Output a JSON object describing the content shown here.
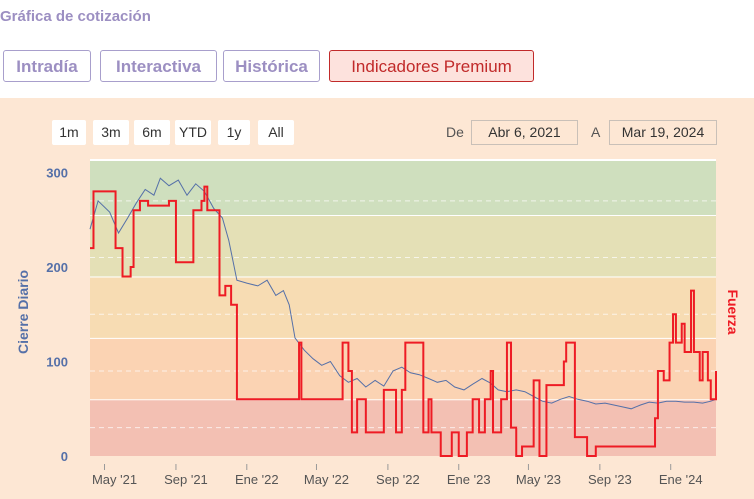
{
  "title": "Gráfica de cotización",
  "tabs": [
    {
      "label": "Intradía"
    },
    {
      "label": "Interactiva"
    },
    {
      "label": "Histórica"
    },
    {
      "label": "Indicadores Premium"
    }
  ],
  "range_buttons": [
    "1m",
    "3m",
    "6m",
    "YTD",
    "1y",
    "All"
  ],
  "date_from_label": "De",
  "date_from": "Abr 6, 2021",
  "date_to_label": "A",
  "date_to": "Mar 19, 2024",
  "chart_data": {
    "type": "line",
    "ylabel": "Cierre Diario",
    "y2label": "Fuerza",
    "ylim": [
      0,
      310
    ],
    "y_ticks": [
      0,
      100,
      200,
      300
    ],
    "x_ticks": [
      "May '21",
      "Sep '21",
      "Ene '22",
      "May '22",
      "Sep '22",
      "Ene '23",
      "May '23",
      "Sep '23",
      "Ene '24"
    ],
    "xlim": [
      "2021-04-06",
      "2024-03-19"
    ],
    "bands": [
      {
        "from": 0,
        "to": 60,
        "color": "#f3c0b3"
      },
      {
        "from": 60,
        "to": 125,
        "color": "#fbd3b3"
      },
      {
        "from": 125,
        "to": 190,
        "color": "#f7dcb3"
      },
      {
        "from": 190,
        "to": 255,
        "color": "#e4e0b6"
      },
      {
        "from": 255,
        "to": 320,
        "color": "#cfdfbe"
      }
    ],
    "series": [
      {
        "name": "Cierre Diario",
        "color": "#5570a8",
        "points": [
          [
            "2021-04-06",
            240
          ],
          [
            "2021-04-20",
            270
          ],
          [
            "2021-05-10",
            258
          ],
          [
            "2021-05-25",
            236
          ],
          [
            "2021-06-10",
            252
          ],
          [
            "2021-06-25",
            268
          ],
          [
            "2021-07-10",
            282
          ],
          [
            "2021-07-25",
            276
          ],
          [
            "2021-08-05",
            294
          ],
          [
            "2021-08-20",
            286
          ],
          [
            "2021-09-05",
            292
          ],
          [
            "2021-09-20",
            276
          ],
          [
            "2021-10-05",
            288
          ],
          [
            "2021-10-20",
            280
          ],
          [
            "2021-11-05",
            262
          ],
          [
            "2021-11-20",
            252
          ],
          [
            "2021-12-01",
            228
          ],
          [
            "2021-12-15",
            186
          ],
          [
            "2022-01-01",
            183
          ],
          [
            "2022-01-20",
            180
          ],
          [
            "2022-02-05",
            186
          ],
          [
            "2022-02-20",
            170
          ],
          [
            "2022-03-05",
            175
          ],
          [
            "2022-03-15",
            160
          ],
          [
            "2022-03-25",
            125
          ],
          [
            "2022-04-10",
            112
          ],
          [
            "2022-04-25",
            103
          ],
          [
            "2022-05-10",
            96
          ],
          [
            "2022-05-25",
            100
          ],
          [
            "2022-06-10",
            85
          ],
          [
            "2022-06-25",
            78
          ],
          [
            "2022-07-10",
            82
          ],
          [
            "2022-07-25",
            73
          ],
          [
            "2022-08-10",
            80
          ],
          [
            "2022-08-25",
            74
          ],
          [
            "2022-09-10",
            90
          ],
          [
            "2022-09-25",
            94
          ],
          [
            "2022-10-10",
            88
          ],
          [
            "2022-10-25",
            86
          ],
          [
            "2022-11-10",
            82
          ],
          [
            "2022-11-25",
            78
          ],
          [
            "2022-12-10",
            80
          ],
          [
            "2022-12-25",
            73
          ],
          [
            "2023-01-10",
            70
          ],
          [
            "2023-01-25",
            76
          ],
          [
            "2023-02-10",
            82
          ],
          [
            "2023-02-25",
            77
          ],
          [
            "2023-03-10",
            70
          ],
          [
            "2023-03-25",
            68
          ],
          [
            "2023-04-10",
            70
          ],
          [
            "2023-04-25",
            68
          ],
          [
            "2023-05-10",
            63
          ],
          [
            "2023-05-25",
            58
          ],
          [
            "2023-06-10",
            56
          ],
          [
            "2023-06-25",
            60
          ],
          [
            "2023-07-10",
            63
          ],
          [
            "2023-07-25",
            60
          ],
          [
            "2023-08-10",
            58
          ],
          [
            "2023-08-25",
            55
          ],
          [
            "2023-09-10",
            56
          ],
          [
            "2023-09-25",
            54
          ],
          [
            "2023-10-10",
            52
          ],
          [
            "2023-10-25",
            50
          ],
          [
            "2023-11-10",
            54
          ],
          [
            "2023-11-25",
            57
          ],
          [
            "2023-12-10",
            56
          ],
          [
            "2023-12-25",
            58
          ],
          [
            "2024-01-10",
            58
          ],
          [
            "2024-01-25",
            57
          ],
          [
            "2024-02-10",
            57
          ],
          [
            "2024-02-25",
            56
          ],
          [
            "2024-03-10",
            58
          ],
          [
            "2024-03-19",
            60
          ]
        ]
      },
      {
        "name": "Fuerza",
        "color": "#ee1b24",
        "points": [
          [
            "2021-04-06",
            220
          ],
          [
            "2021-04-12",
            280
          ],
          [
            "2021-05-20",
            220
          ],
          [
            "2021-06-01",
            190
          ],
          [
            "2021-06-15",
            200
          ],
          [
            "2021-06-20",
            260
          ],
          [
            "2021-07-01",
            270
          ],
          [
            "2021-07-15",
            265
          ],
          [
            "2021-08-20",
            270
          ],
          [
            "2021-09-01",
            205
          ],
          [
            "2021-10-01",
            260
          ],
          [
            "2021-10-15",
            270
          ],
          [
            "2021-10-20",
            285
          ],
          [
            "2021-10-25",
            260
          ],
          [
            "2021-11-15",
            170
          ],
          [
            "2021-11-25",
            180
          ],
          [
            "2021-12-05",
            160
          ],
          [
            "2021-12-15",
            60
          ],
          [
            "2022-04-01",
            120
          ],
          [
            "2022-04-05",
            60
          ],
          [
            "2022-06-15",
            120
          ],
          [
            "2022-06-25",
            90
          ],
          [
            "2022-07-01",
            25
          ],
          [
            "2022-07-10",
            60
          ],
          [
            "2022-07-25",
            25
          ],
          [
            "2022-08-25",
            70
          ],
          [
            "2022-09-01",
            70
          ],
          [
            "2022-09-15",
            25
          ],
          [
            "2022-09-25",
            70
          ],
          [
            "2022-10-01",
            120
          ],
          [
            "2022-10-10",
            120
          ],
          [
            "2022-11-01",
            25
          ],
          [
            "2022-11-10",
            60
          ],
          [
            "2022-11-15",
            25
          ],
          [
            "2022-12-01",
            0
          ],
          [
            "2022-12-20",
            25
          ],
          [
            "2023-01-01",
            0
          ],
          [
            "2023-01-15",
            25
          ],
          [
            "2023-01-25",
            60
          ],
          [
            "2023-02-05",
            25
          ],
          [
            "2023-02-15",
            60
          ],
          [
            "2023-02-25",
            90
          ],
          [
            "2023-03-01",
            25
          ],
          [
            "2023-03-15",
            60
          ],
          [
            "2023-03-25",
            120
          ],
          [
            "2023-04-01",
            30
          ],
          [
            "2023-04-10",
            0
          ],
          [
            "2023-04-20",
            10
          ],
          [
            "2023-05-10",
            80
          ],
          [
            "2023-05-20",
            0
          ],
          [
            "2023-06-01",
            75
          ],
          [
            "2023-06-20",
            75
          ],
          [
            "2023-07-01",
            100
          ],
          [
            "2023-07-05",
            120
          ],
          [
            "2023-07-20",
            20
          ],
          [
            "2023-08-10",
            0
          ],
          [
            "2023-08-25",
            10
          ],
          [
            "2023-09-01",
            10
          ],
          [
            "2023-10-01",
            10
          ],
          [
            "2023-11-15",
            10
          ],
          [
            "2023-12-05",
            40
          ],
          [
            "2023-12-10",
            90
          ],
          [
            "2023-12-20",
            80
          ],
          [
            "2023-12-30",
            120
          ],
          [
            "2024-01-05",
            150
          ],
          [
            "2024-01-10",
            120
          ],
          [
            "2024-01-20",
            140
          ],
          [
            "2024-01-25",
            110
          ],
          [
            "2024-02-05",
            175
          ],
          [
            "2024-02-10",
            110
          ],
          [
            "2024-02-20",
            80
          ],
          [
            "2024-02-25",
            110
          ],
          [
            "2024-03-05",
            80
          ],
          [
            "2024-03-10",
            60
          ],
          [
            "2024-03-19",
            90
          ]
        ]
      }
    ]
  }
}
